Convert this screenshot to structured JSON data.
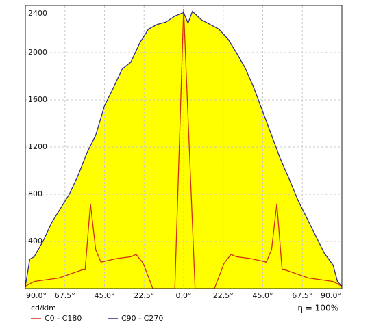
{
  "chart_data": {
    "type": "polar-linear",
    "y_axis_label": "cd/klm",
    "efficiency": "η = 100%",
    "xlim": [
      -90,
      90
    ],
    "xticks": [
      {
        "value": -90,
        "label": "90.0°"
      },
      {
        "value": -67.5,
        "label": "67.5°"
      },
      {
        "value": -45,
        "label": "45.0°"
      },
      {
        "value": -22.5,
        "label": "22.5°"
      },
      {
        "value": 0,
        "label": "0.0°"
      },
      {
        "value": 22.5,
        "label": "22.5°"
      },
      {
        "value": 45,
        "label": "45.0°"
      },
      {
        "value": 67.5,
        "label": "67.5°"
      },
      {
        "value": 90,
        "label": "90.0°"
      }
    ],
    "ylim": [
      0,
      2400
    ],
    "yticks": [
      400,
      800,
      1200,
      1600,
      2000,
      2400
    ],
    "grid": true,
    "series": [
      {
        "name": "C0 - C180",
        "color": "#d03010",
        "fill": null,
        "x": [
          -90,
          -85,
          -71,
          -61.5,
          -57.5,
          -56,
          -53,
          -50,
          -47,
          -38,
          -30,
          -27,
          -23,
          -17.5,
          -5,
          0,
          6.5,
          17.5,
          23,
          27,
          30,
          38,
          47,
          50,
          53,
          56,
          57.5,
          61.5,
          71,
          85,
          90
        ],
        "values": [
          20,
          60,
          90,
          140,
          160,
          160,
          720,
          330,
          225,
          255,
          270,
          290,
          215,
          0,
          0,
          2370,
          0,
          0,
          215,
          290,
          270,
          255,
          225,
          330,
          720,
          160,
          160,
          140,
          90,
          60,
          20
        ]
      },
      {
        "name": "C90 - C270",
        "color": "#2a2a8c",
        "fill": "#ffff00",
        "x": [
          -90,
          -87.5,
          -85,
          -80,
          -75,
          -70,
          -65,
          -60,
          -55,
          -50,
          -45,
          -40,
          -35,
          -30,
          -25,
          -20,
          -15,
          -10,
          -5,
          0,
          2.5,
          5,
          10,
          15,
          20,
          25,
          30,
          35,
          40,
          45,
          50,
          55,
          60,
          65,
          70,
          75,
          80,
          85,
          87.5,
          90
        ],
        "values": [
          20,
          250,
          270,
          400,
          560,
          680,
          800,
          960,
          1150,
          1300,
          1550,
          1700,
          1860,
          1920,
          2080,
          2200,
          2240,
          2260,
          2310,
          2340,
          2250,
          2350,
          2280,
          2240,
          2200,
          2120,
          2000,
          1870,
          1700,
          1500,
          1300,
          1100,
          930,
          750,
          600,
          450,
          300,
          200,
          60,
          20
        ]
      }
    ]
  }
}
